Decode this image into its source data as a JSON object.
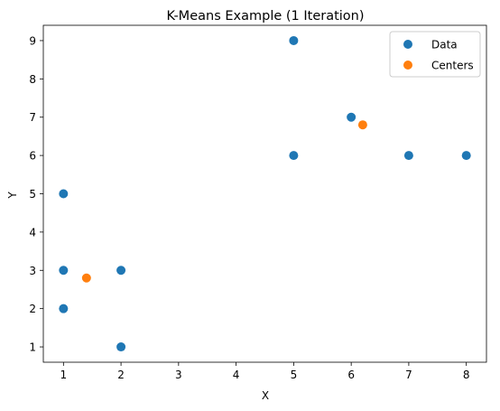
{
  "chart_data": {
    "type": "scatter",
    "title": "K-Means Example (1 Iteration)",
    "xlabel": "X",
    "ylabel": "Y",
    "xlim": [
      0.65,
      8.35
    ],
    "ylim": [
      0.6,
      9.4
    ],
    "xticks": [
      1,
      2,
      3,
      4,
      5,
      6,
      7,
      8
    ],
    "yticks": [
      1,
      2,
      3,
      4,
      5,
      6,
      7,
      8,
      9
    ],
    "grid": false,
    "legend_position": "top-right",
    "series": [
      {
        "name": "Data",
        "color": "#1f77b4",
        "points": [
          {
            "x": 1,
            "y": 2
          },
          {
            "x": 1,
            "y": 3
          },
          {
            "x": 1,
            "y": 5
          },
          {
            "x": 2,
            "y": 1
          },
          {
            "x": 2,
            "y": 3
          },
          {
            "x": 5,
            "y": 6
          },
          {
            "x": 5,
            "y": 9
          },
          {
            "x": 6,
            "y": 7
          },
          {
            "x": 7,
            "y": 6
          },
          {
            "x": 8,
            "y": 6
          }
        ]
      },
      {
        "name": "Centers",
        "color": "#ff7f0e",
        "points": [
          {
            "x": 1.4,
            "y": 2.8
          },
          {
            "x": 6.2,
            "y": 6.8
          }
        ]
      }
    ]
  }
}
